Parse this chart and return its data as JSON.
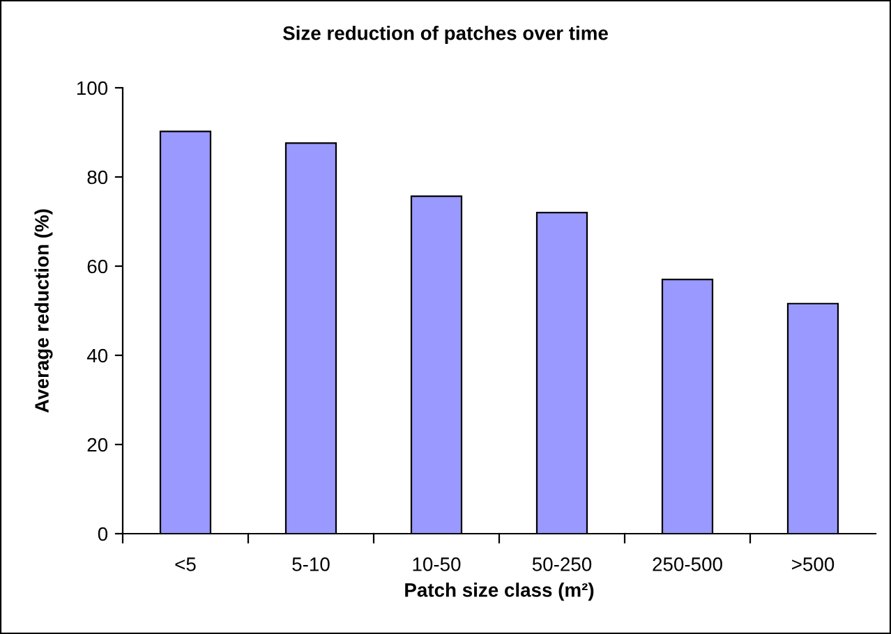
{
  "chart_data": {
    "type": "bar",
    "title": "Size reduction of patches over time",
    "xlabel": "Patch size class (m²)",
    "ylabel": "Average reduction (%)",
    "categories": [
      "<5",
      "5-10",
      "10-50",
      "50-250",
      "250-500",
      ">500"
    ],
    "values": [
      90.2,
      87.6,
      75.7,
      72.0,
      57.0,
      51.6
    ],
    "color": "#9999ff",
    "ylim": [
      0,
      100
    ],
    "yticks": [
      0,
      20,
      40,
      60,
      80,
      100
    ],
    "grid": false,
    "legend": false
  }
}
